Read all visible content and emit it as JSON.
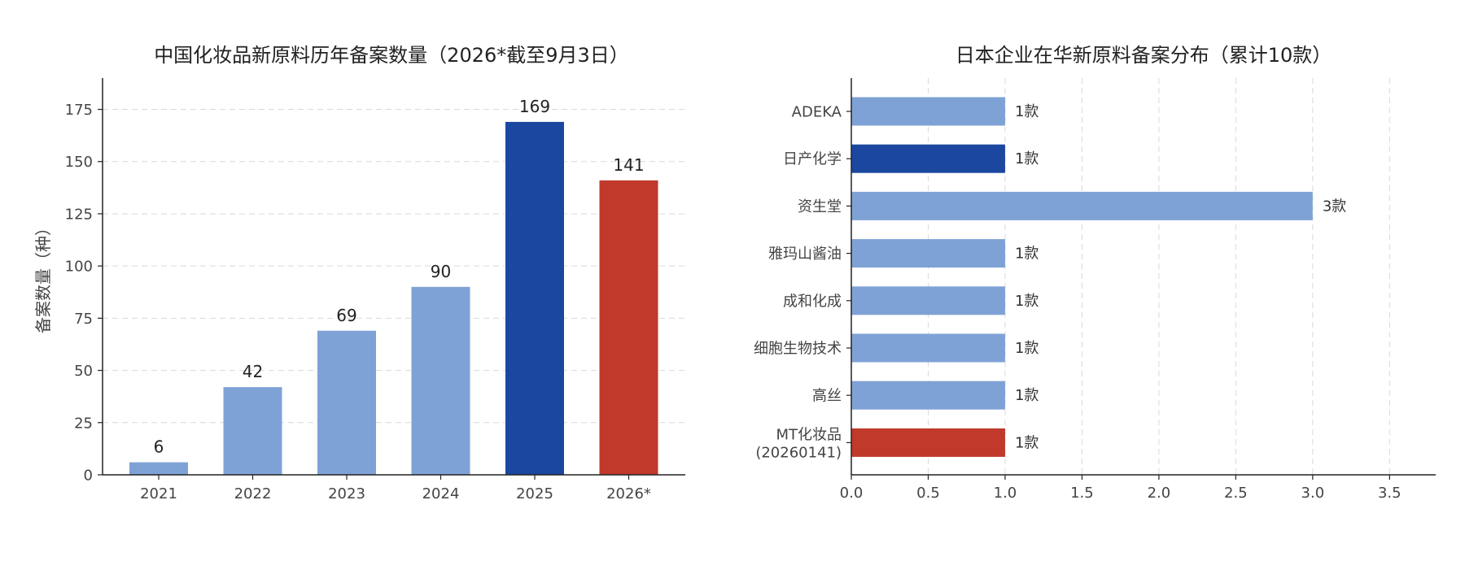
{
  "chart_data": [
    {
      "type": "bar",
      "title": "中国化妆品新原料历年备案数量（2026*截至9月3日）",
      "xlabel": "",
      "ylabel": "备案数量（种）",
      "categories": [
        "2021",
        "2022",
        "2023",
        "2024",
        "2025",
        "2026*"
      ],
      "values": [
        6,
        42,
        69,
        90,
        169,
        141
      ],
      "data_labels": [
        "6",
        "42",
        "69",
        "90",
        "169",
        "141"
      ],
      "bar_colors": [
        "#7fa2d6",
        "#7fa2d6",
        "#7fa2d6",
        "#7fa2d6",
        "#1c47a0",
        "#c0392b"
      ],
      "ylim": [
        0,
        190
      ],
      "yticks": [
        0,
        25,
        50,
        75,
        100,
        125,
        150,
        175
      ],
      "grid": "horizontal dashed",
      "legend": "none"
    },
    {
      "type": "bar",
      "orientation": "horizontal",
      "title": "日本企业在华新原料备案分布（累计10款）",
      "xlabel": "",
      "ylabel": "",
      "categories": [
        "ADEKA",
        "日产化学",
        "资生堂",
        "雅玛山酱油",
        "成和化成",
        "细胞生物技术",
        "高丝",
        "MT化妆品\n(20260141)"
      ],
      "values": [
        1,
        1,
        3,
        1,
        1,
        1,
        1,
        1
      ],
      "data_labels": [
        "1款",
        "1款",
        "3款",
        "1款",
        "1款",
        "1款",
        "1款",
        "1款"
      ],
      "bar_colors": [
        "#7fa2d6",
        "#1c47a0",
        "#7fa2d6",
        "#7fa2d6",
        "#7fa2d6",
        "#7fa2d6",
        "#7fa2d6",
        "#c0392b"
      ],
      "xlim": [
        0,
        3.8
      ],
      "xticks": [
        "0.0",
        "0.5",
        "1.0",
        "1.5",
        "2.0",
        "2.5",
        "3.0",
        "3.5"
      ],
      "grid": "vertical dashed",
      "legend": "none"
    }
  ]
}
